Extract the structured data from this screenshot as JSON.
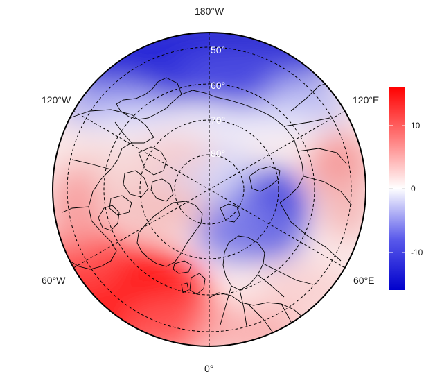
{
  "map": {
    "projection": "north-polar-stereographic",
    "longitude_labels": {
      "top": "180°W",
      "upper_left": "120°W",
      "upper_right": "120°E",
      "lower_left": "60°W",
      "lower_right": "60°E",
      "bottom": "0°"
    },
    "latitude_labels": [
      "50°",
      "60°",
      "70°",
      "80°"
    ],
    "colors": {
      "negative": "#0000cc",
      "zero": "#ffffff",
      "positive": "#ff0000",
      "coastline": "#000000",
      "graticule": "#000000"
    }
  },
  "colorbar": {
    "range": [
      -16,
      16
    ],
    "ticks": [
      {
        "value": 10,
        "label": "10"
      },
      {
        "value": 0,
        "label": "0"
      },
      {
        "value": -10,
        "label": "-10"
      }
    ]
  }
}
